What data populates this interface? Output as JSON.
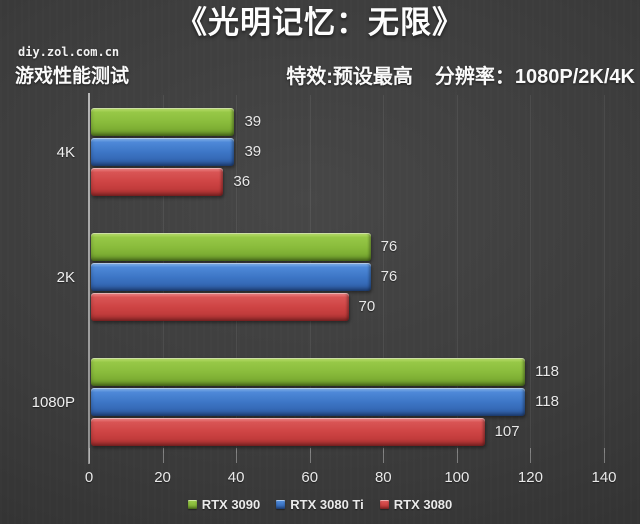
{
  "header": {
    "title": "《光明记忆：无限》",
    "watermark": "diy.zol.com.cn",
    "left_label": "游戏性能测试",
    "settings_label": "特效:预设最高",
    "resolution_label": "分辨率：1080P/2K/4K"
  },
  "chart_data": {
    "type": "bar",
    "orientation": "horizontal",
    "title": "《光明记忆：无限》",
    "categories": [
      "4K",
      "2K",
      "1080P"
    ],
    "series": [
      {
        "name": "RTX 3090",
        "color": "#8abc3c",
        "values": [
          39,
          76,
          118
        ]
      },
      {
        "name": "RTX 3080 Ti",
        "color": "#3d76c6",
        "values": [
          39,
          76,
          118
        ]
      },
      {
        "name": "RTX 3080",
        "color": "#ce4444",
        "values": [
          36,
          70,
          107
        ]
      }
    ],
    "xlabel": "",
    "ylabel": "",
    "xlim": [
      0,
      140
    ],
    "x_ticks": [
      0,
      20,
      40,
      60,
      80,
      100,
      120,
      140
    ],
    "grid": true,
    "legend_position": "bottom",
    "value_labels": true,
    "background": "#3c3c3c",
    "text_color": "#eaeaea"
  }
}
